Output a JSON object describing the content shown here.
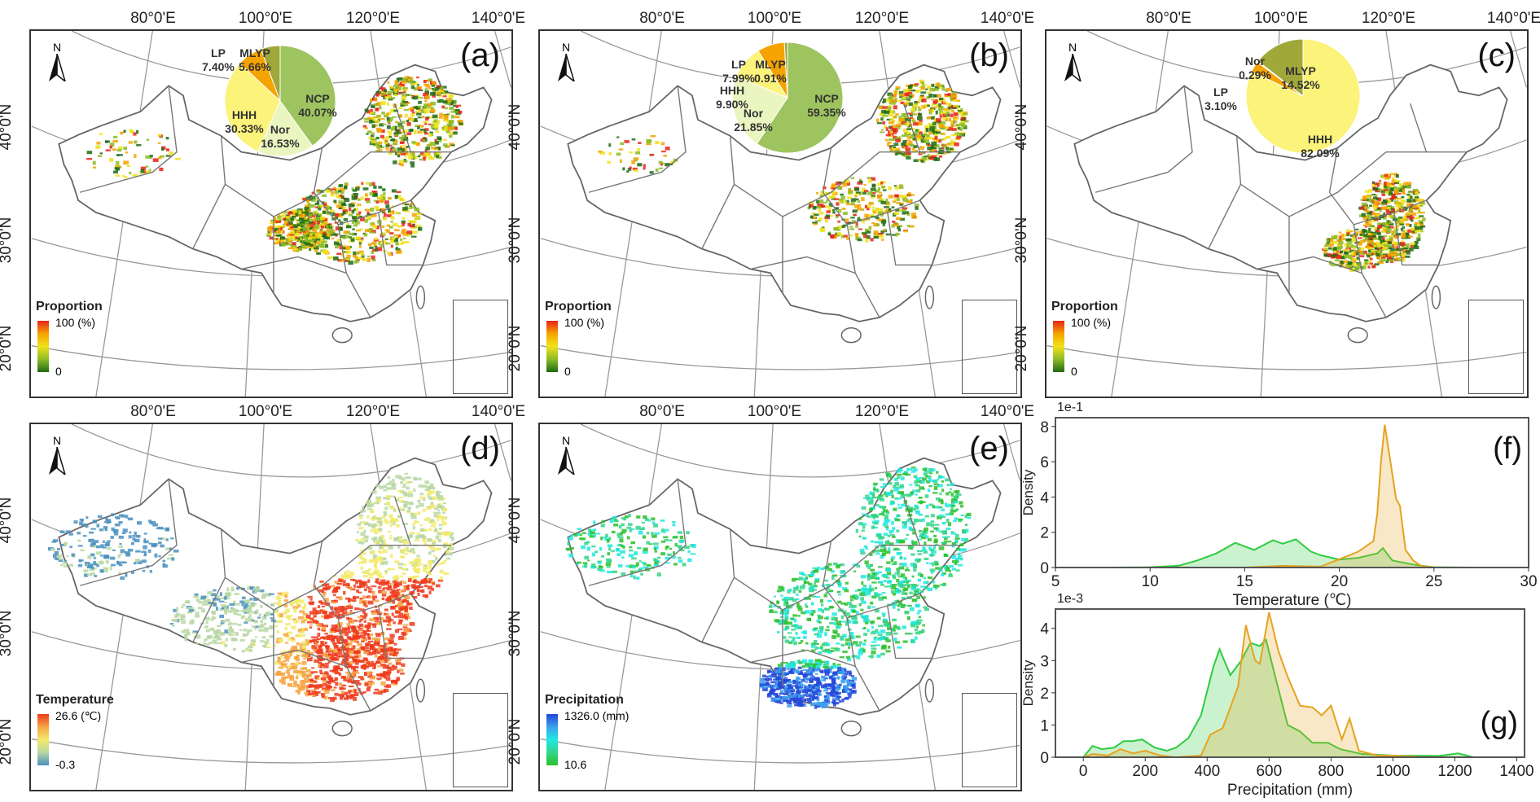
{
  "maps": [
    {
      "id": "a",
      "label": "(a)",
      "lon_labels": [
        "80°0'E",
        "100°0'E",
        "120°0'E",
        "140°0'E"
      ],
      "lat_labels": [
        "40°0'N",
        "30°0'N",
        "20°0'N"
      ],
      "north": "N",
      "legend": {
        "title": "Proportion",
        "high": "100 (%)",
        "low": "0",
        "colors": [
          "#e8231a",
          "#f5a300",
          "#f0e21a",
          "#8dbb25",
          "#1e6b14"
        ]
      },
      "pie": [
        {
          "name": "NCP",
          "value": 40.07,
          "pct": "40.07%",
          "color": "#9dc45f"
        },
        {
          "name": "Nor",
          "value": 16.53,
          "pct": "16.53%",
          "color": "#eaf5c0"
        },
        {
          "name": "HHH",
          "value": 30.33,
          "pct": "30.33%",
          "color": "#fbf37a"
        },
        {
          "name": "LP",
          "value": 7.4,
          "pct": "7.40%",
          "color": "#f5a300"
        },
        {
          "name": "MLYP",
          "value": 5.66,
          "pct": "5.66%",
          "color": "#a1a83a"
        }
      ]
    },
    {
      "id": "b",
      "label": "(b)",
      "lon_labels": [
        "80°0'E",
        "100°0'E",
        "120°0'E",
        "140°0'E"
      ],
      "lat_labels": [
        "40°0'N",
        "30°0'N",
        "20°0'N"
      ],
      "north": "N",
      "legend": {
        "title": "Proportion",
        "high": "100 (%)",
        "low": "0",
        "colors": [
          "#e8231a",
          "#f5a300",
          "#f0e21a",
          "#8dbb25",
          "#1e6b14"
        ]
      },
      "pie": [
        {
          "name": "NCP",
          "value": 59.35,
          "pct": "59.35%",
          "color": "#9dc45f"
        },
        {
          "name": "Nor",
          "value": 21.85,
          "pct": "21.85%",
          "color": "#eaf5c0"
        },
        {
          "name": "HHH",
          "value": 9.9,
          "pct": "9.90%",
          "color": "#fbf37a"
        },
        {
          "name": "LP",
          "value": 7.99,
          "pct": "7.99%",
          "color": "#f5a300"
        },
        {
          "name": "MLYP",
          "value": 0.91,
          "pct": "0.91%",
          "color": "#a1a83a"
        }
      ]
    },
    {
      "id": "c",
      "label": "(c)",
      "lon_labels": [
        "80°0'E",
        "100°0'E",
        "120°0'E",
        "140°0'E"
      ],
      "lat_labels": [
        "40°0'N",
        "30°0'N",
        "20°0'N"
      ],
      "north": "N",
      "legend": {
        "title": "Proportion",
        "high": "100 (%)",
        "low": "0",
        "colors": [
          "#e8231a",
          "#f5a300",
          "#f0e21a",
          "#8dbb25",
          "#1e6b14"
        ]
      },
      "pie": [
        {
          "name": "HHH",
          "value": 82.09,
          "pct": "82.09%",
          "color": "#fbf37a"
        },
        {
          "name": "LP",
          "value": 3.1,
          "pct": "3.10%",
          "color": "#f5a300"
        },
        {
          "name": "Nor",
          "value": 0.29,
          "pct": "0.29%",
          "color": "#eaf5c0"
        },
        {
          "name": "MLYP",
          "value": 14.52,
          "pct": "14.52%",
          "color": "#a1a83a"
        }
      ]
    },
    {
      "id": "d",
      "label": "(d)",
      "lon_labels": [
        "80°0'E",
        "100°0'E",
        "120°0'E",
        "140°0'E"
      ],
      "lat_labels": [
        "40°0'N",
        "30°0'N",
        "20°0'N"
      ],
      "north": "N",
      "legend": {
        "title": "Temperature",
        "high": "26.6 (℃)",
        "low": "-0.3",
        "colors": [
          "#ee3a1c",
          "#f7a542",
          "#f2ea6a",
          "#b9d7a3",
          "#4a90c0"
        ]
      }
    },
    {
      "id": "e",
      "label": "(e)",
      "lon_labels": [
        "80°0'E",
        "100°0'E",
        "120°0'E",
        "140°0'E"
      ],
      "lat_labels": [
        "40°0'N",
        "30°0'N",
        "20°0'N"
      ],
      "north": "N",
      "legend": {
        "title": "Precipitation",
        "high": "1326.0 (mm)",
        "low": "10.6",
        "colors": [
          "#2346d8",
          "#3aa0ee",
          "#1ee8e0",
          "#33d58a",
          "#2cc02c"
        ]
      }
    }
  ],
  "chart_data": [
    {
      "type": "area",
      "label": "(f)",
      "exponent": "1e-1",
      "xlabel": "Temperature (℃)",
      "ylabel": "Density",
      "xlim": [
        5,
        30
      ],
      "ylim": [
        0,
        8.5
      ],
      "xticks": [
        "5",
        "10",
        "15",
        "20",
        "25",
        "30"
      ],
      "xtick_values": [
        5,
        10,
        15,
        20,
        25,
        30
      ],
      "yticks": [
        "0",
        "2",
        "4",
        "6",
        "8"
      ],
      "ytick_values": [
        0,
        2,
        4,
        6,
        8
      ],
      "series": [
        {
          "color": "#2ecc40",
          "points": [
            [
              5,
              0
            ],
            [
              8,
              0
            ],
            [
              10,
              0.02
            ],
            [
              11.5,
              0.1
            ],
            [
              12.5,
              0.4
            ],
            [
              13.5,
              0.8
            ],
            [
              14.5,
              1.4
            ],
            [
              15.5,
              1.0
            ],
            [
              16.5,
              1.55
            ],
            [
              17,
              1.35
            ],
            [
              17.7,
              1.6
            ],
            [
              18.5,
              0.9
            ],
            [
              19,
              0.7
            ],
            [
              20,
              0.45
            ],
            [
              21,
              0.55
            ],
            [
              22,
              0.8
            ],
            [
              22.3,
              1.1
            ],
            [
              22.8,
              0.4
            ],
            [
              24,
              0.15
            ],
            [
              25,
              0.02
            ],
            [
              27,
              0
            ]
          ]
        },
        {
          "color": "#e5a320",
          "points": [
            [
              15,
              0
            ],
            [
              17,
              0.1
            ],
            [
              19,
              0.05
            ],
            [
              20.3,
              0.6
            ],
            [
              21,
              0.9
            ],
            [
              21.8,
              1.5
            ],
            [
              22,
              3
            ],
            [
              22.2,
              6
            ],
            [
              22.4,
              8.1
            ],
            [
              22.7,
              6
            ],
            [
              23,
              3.9
            ],
            [
              23.2,
              3.5
            ],
            [
              23.5,
              1
            ],
            [
              23.9,
              0.4
            ],
            [
              24.3,
              0.1
            ],
            [
              25,
              0
            ],
            [
              27,
              0
            ]
          ]
        }
      ]
    },
    {
      "type": "area",
      "label": "(g)",
      "exponent": "1e-3",
      "xlabel": "Precipitation (mm)",
      "ylabel": "Density",
      "xlim": [
        -90,
        1425
      ],
      "ylim": [
        0,
        4.6
      ],
      "xticks": [
        "0",
        "200",
        "400",
        "600",
        "800",
        "1000",
        "1200",
        "1400"
      ],
      "xtick_values": [
        0,
        200,
        400,
        600,
        800,
        1000,
        1200,
        1400
      ],
      "yticks": [
        "0",
        "1",
        "2",
        "3",
        "4"
      ],
      "ytick_values": [
        0,
        1,
        2,
        3,
        4
      ],
      "series": [
        {
          "color": "#2ecc40",
          "points": [
            [
              0,
              0
            ],
            [
              30,
              0.35
            ],
            [
              60,
              0.25
            ],
            [
              100,
              0.3
            ],
            [
              130,
              0.5
            ],
            [
              160,
              0.5
            ],
            [
              190,
              0.55
            ],
            [
              230,
              0.3
            ],
            [
              270,
              0.2
            ],
            [
              300,
              0.3
            ],
            [
              340,
              0.6
            ],
            [
              380,
              1.3
            ],
            [
              420,
              2.8
            ],
            [
              440,
              3.35
            ],
            [
              475,
              2.55
            ],
            [
              510,
              3.0
            ],
            [
              540,
              3.55
            ],
            [
              570,
              3.45
            ],
            [
              590,
              3.65
            ],
            [
              620,
              2.5
            ],
            [
              660,
              1.0
            ],
            [
              700,
              0.8
            ],
            [
              740,
              0.45
            ],
            [
              790,
              0.45
            ],
            [
              830,
              0.25
            ],
            [
              900,
              0.1
            ],
            [
              1000,
              0.05
            ],
            [
              1150,
              0.04
            ],
            [
              1210,
              0.12
            ],
            [
              1260,
              0
            ]
          ]
        },
        {
          "color": "#e5a320",
          "points": [
            [
              0,
              0
            ],
            [
              30,
              0.1
            ],
            [
              80,
              0.05
            ],
            [
              120,
              0.25
            ],
            [
              160,
              0.12
            ],
            [
              200,
              0.2
            ],
            [
              250,
              0.05
            ],
            [
              300,
              0
            ],
            [
              380,
              0.05
            ],
            [
              410,
              0.7
            ],
            [
              450,
              0.9
            ],
            [
              500,
              2.2
            ],
            [
              525,
              4.1
            ],
            [
              555,
              3.0
            ],
            [
              570,
              2.9
            ],
            [
              600,
              4.5
            ],
            [
              630,
              3.3
            ],
            [
              660,
              2.5
            ],
            [
              700,
              1.6
            ],
            [
              740,
              1.55
            ],
            [
              770,
              1.3
            ],
            [
              800,
              1.6
            ],
            [
              835,
              0.55
            ],
            [
              860,
              1.2
            ],
            [
              890,
              0.2
            ],
            [
              950,
              0.05
            ],
            [
              1000,
              0.05
            ],
            [
              1100,
              0
            ],
            [
              1260,
              0
            ]
          ]
        }
      ]
    }
  ]
}
